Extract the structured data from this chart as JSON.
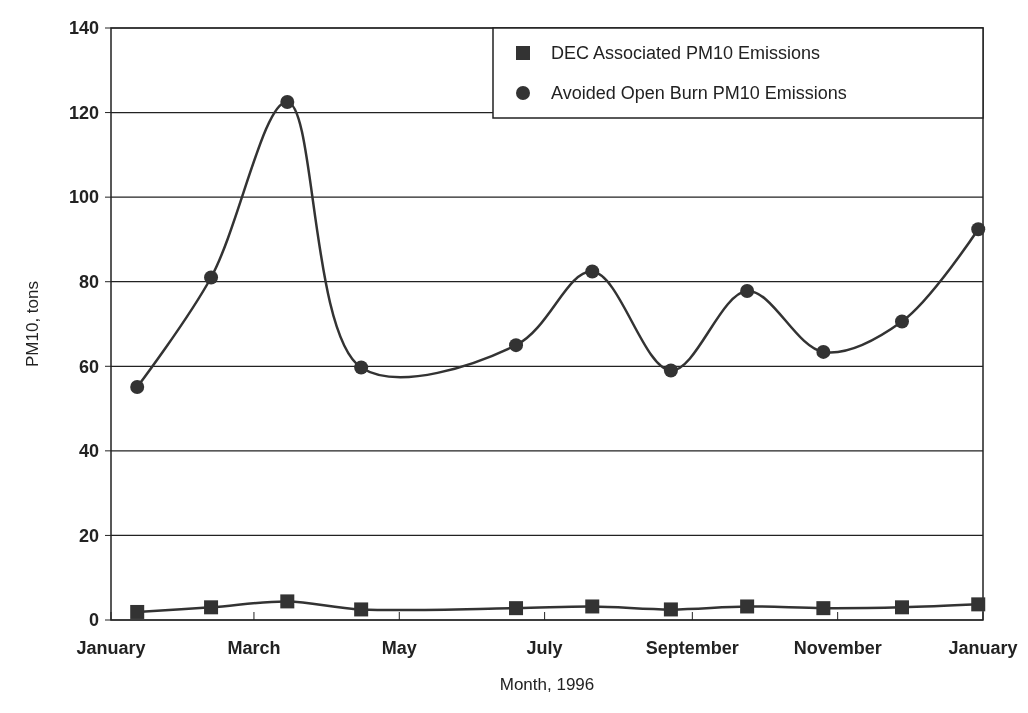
{
  "chart_data": {
    "type": "line",
    "xlabel": "Month,  1996",
    "ylabel": "PM10, tons",
    "xlim": [
      "1996-01-01",
      "1997-01-01"
    ],
    "xticks": [
      {
        "value": "1996-01-01",
        "label": "January"
      },
      {
        "value": "1996-03-01",
        "label": "March"
      },
      {
        "value": "1996-05-01",
        "label": "May"
      },
      {
        "value": "1996-07-01",
        "label": "July"
      },
      {
        "value": "1996-09-01",
        "label": "September"
      },
      {
        "value": "1996-11-01",
        "label": "November"
      },
      {
        "value": "1997-01-01",
        "label": "January"
      }
    ],
    "ylim": [
      0,
      140
    ],
    "yticks": [
      0,
      20,
      40,
      60,
      80,
      100,
      120,
      140
    ],
    "grid": "y",
    "legend": "top right",
    "series": [
      {
        "name": "DEC Associated PM10 Emissions",
        "color": "#333333",
        "marker": "square",
        "x": [
          "1996-01-12",
          "1996-02-12",
          "1996-03-15",
          "1996-04-15",
          "1996-06-19",
          "1996-07-21",
          "1996-08-23",
          "1996-09-24",
          "1996-10-26",
          "1996-11-28",
          "1996-12-30"
        ],
        "values": [
          1.9,
          3,
          4.4,
          2.5,
          2.8,
          3.2,
          2.5,
          3.2,
          2.8,
          3,
          3.7
        ]
      },
      {
        "name": "Avoided Open Burn PM10 Emissions",
        "color": "#333333",
        "marker": "circle",
        "x": [
          "1996-01-12",
          "1996-02-12",
          "1996-03-15",
          "1996-04-15",
          "1996-06-19",
          "1996-07-21",
          "1996-08-23",
          "1996-09-24",
          "1996-10-26",
          "1996-11-28",
          "1996-12-30"
        ],
        "values": [
          55.1,
          81,
          122.5,
          59.7,
          65,
          82.4,
          59,
          77.8,
          63.4,
          70.6,
          92.4
        ]
      }
    ]
  }
}
